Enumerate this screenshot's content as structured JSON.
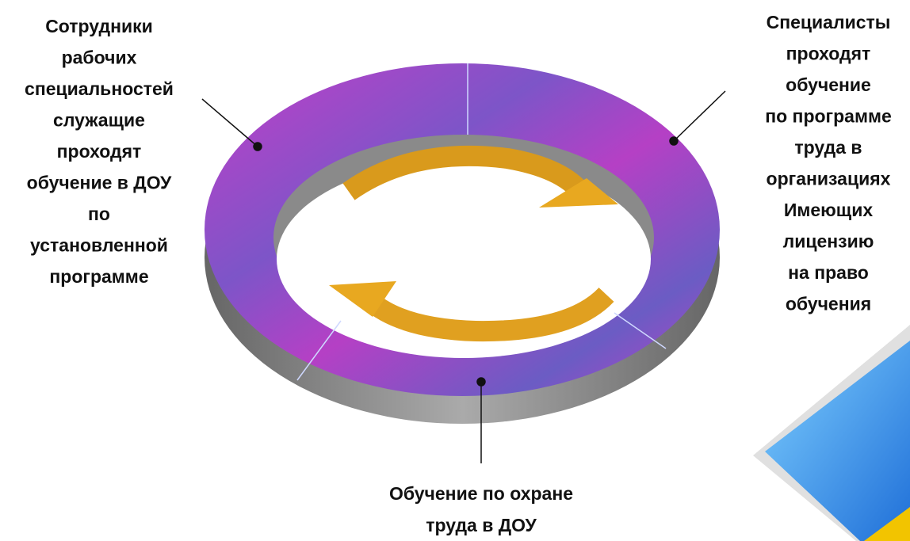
{
  "nodes": [
    {
      "label": [
        "Сотрудники",
        "рабочих",
        "специальностей",
        "служащие",
        "проходят",
        "обучение в ДОУ",
        "по",
        "установленной",
        "программе"
      ]
    },
    {
      "label": [
        "Специалисты",
        "проходят",
        "обучение",
        "по программе",
        "труда в",
        "организациях",
        "Имеющих",
        "лицензию",
        "на право",
        "обучения"
      ]
    },
    {
      "label": [
        "Обучение по охране",
        "труда в ДОУ"
      ]
    }
  ]
}
